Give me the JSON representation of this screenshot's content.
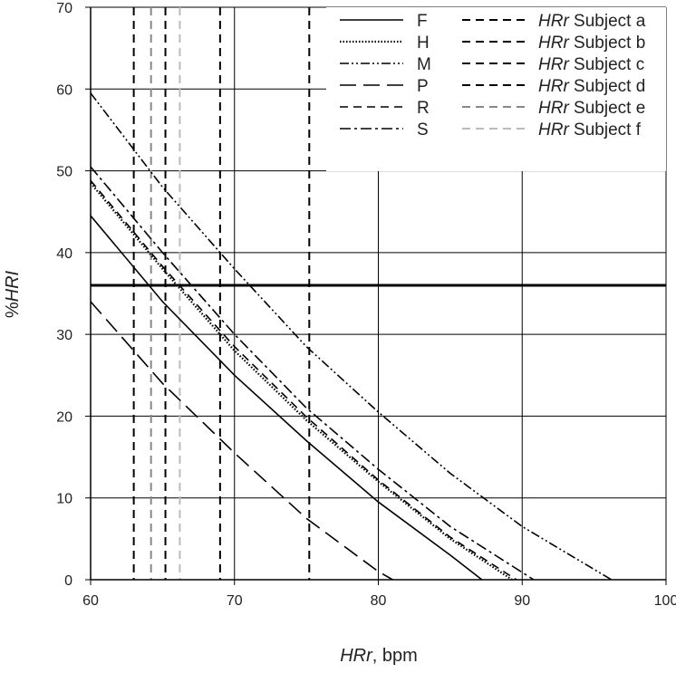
{
  "chart_data": {
    "type": "line",
    "title": "",
    "xlabel": {
      "italic": "HRr",
      "rest": ", bpm"
    },
    "ylabel": {
      "prefix": "%",
      "italic": "HRI"
    },
    "xlim": [
      60,
      100
    ],
    "ylim": [
      0,
      70
    ],
    "x_ticks": [
      "60",
      "70",
      "80",
      "90",
      "100"
    ],
    "y_ticks": [
      "0",
      "10",
      "20",
      "30",
      "40",
      "50",
      "60",
      "70"
    ],
    "grid": true,
    "legend_position": "top-right",
    "threshold": {
      "y": 36,
      "color": "#000000"
    },
    "series": [
      {
        "name": "F",
        "style": "solid",
        "color": "#000000",
        "x": [
          60,
          65,
          70,
          75,
          80,
          85,
          87.2
        ],
        "y": [
          44.5,
          34.0,
          25.0,
          17.0,
          9.5,
          3.0,
          0
        ]
      },
      {
        "name": "H",
        "style": "dotted",
        "color": "#000000",
        "x": [
          60,
          65,
          70,
          75,
          80,
          85,
          89.3
        ],
        "y": [
          48.5,
          38.0,
          28.0,
          19.5,
          12.0,
          5.0,
          0
        ]
      },
      {
        "name": "M",
        "style": "dashdotdot",
        "color": "#000000",
        "x": [
          60,
          65,
          70,
          75,
          80,
          85,
          90,
          96.2
        ],
        "y": [
          59.5,
          48.0,
          38.0,
          28.5,
          20.5,
          13.0,
          6.5,
          0
        ]
      },
      {
        "name": "P",
        "style": "longdash",
        "color": "#000000",
        "x": [
          60,
          65,
          70,
          75,
          80,
          81.0
        ],
        "y": [
          34.0,
          24.0,
          15.5,
          7.5,
          1.0,
          0
        ]
      },
      {
        "name": "R",
        "style": "dashed",
        "color": "#000000",
        "x": [
          60,
          65,
          70,
          75,
          80,
          85,
          89.6
        ],
        "y": [
          48.8,
          38.3,
          28.5,
          19.9,
          12.2,
          5.2,
          0
        ]
      },
      {
        "name": "S",
        "style": "dashdot",
        "color": "#000000",
        "x": [
          60,
          65,
          70,
          75,
          80,
          85,
          90.8
        ],
        "y": [
          50.5,
          40.0,
          30.0,
          21.0,
          13.5,
          6.5,
          0
        ]
      }
    ],
    "subjects": [
      {
        "name_italic": "HRr",
        "name_rest": " Subject a",
        "x": 63.0,
        "color": "#000000"
      },
      {
        "name_italic": "HRr",
        "name_rest": " Subject b",
        "x": 65.2,
        "color": "#000000"
      },
      {
        "name_italic": "HRr",
        "name_rest": " Subject c",
        "x": 69.0,
        "color": "#000000"
      },
      {
        "name_italic": "HRr",
        "name_rest": " Subject d",
        "x": 75.2,
        "color": "#000000"
      },
      {
        "name_italic": "HRr",
        "name_rest": " Subject e",
        "x": 64.2,
        "color": "#888888"
      },
      {
        "name_italic": "HRr",
        "name_rest": " Subject f",
        "x": 66.2,
        "color": "#bbbbbb"
      }
    ]
  }
}
